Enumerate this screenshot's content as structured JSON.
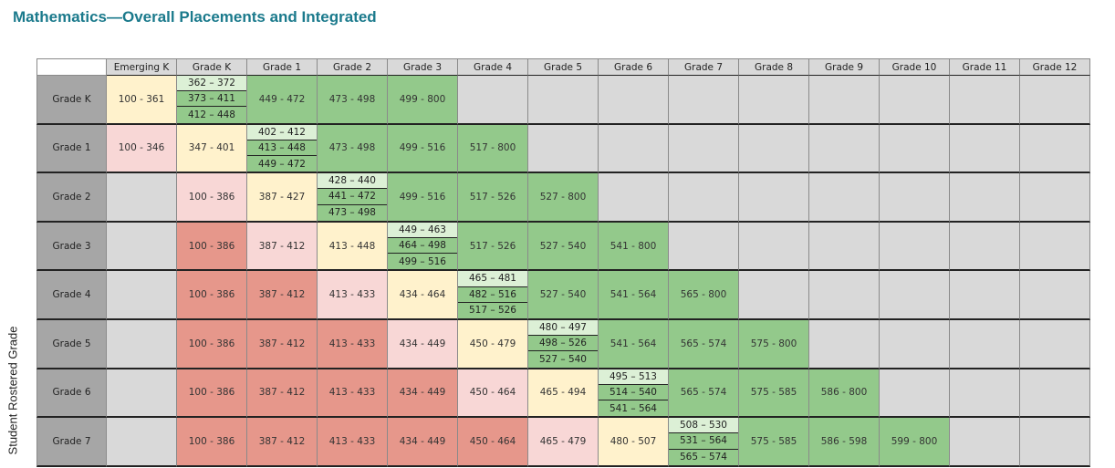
{
  "header": {
    "title": "Mathematics—Overall Placements and Integrated"
  },
  "side_label": "Student Rostered Grade",
  "tone_colors": {
    "gray": "#d9d9d9",
    "green": "#93c98b",
    "lightgreen": "#dcf0d6",
    "yellow": "#fff2cc",
    "pink": "#f8d7d6",
    "red": "#e6978b"
  },
  "table": {
    "columns": [
      "Emerging K",
      "Grade K",
      "Grade 1",
      "Grade 2",
      "Grade 3",
      "Grade 4",
      "Grade 5",
      "Grade 6",
      "Grade 7",
      "Grade 8",
      "Grade 9",
      "Grade 10",
      "Grade 11",
      "Grade 12"
    ],
    "rows": [
      {
        "label": "Grade K",
        "cells": [
          {
            "text": "100 - 361",
            "tone": "yellow"
          },
          {
            "parts": [
              "362 – 372",
              "373 – 411",
              "412 – 448"
            ]
          },
          {
            "text": "449 - 472",
            "tone": "green"
          },
          {
            "text": "473 - 498",
            "tone": "green"
          },
          {
            "text": "499 - 800",
            "tone": "green"
          },
          null,
          null,
          null,
          null,
          null,
          null,
          null,
          null,
          null
        ]
      },
      {
        "label": "Grade 1",
        "cells": [
          {
            "text": "100 - 346",
            "tone": "pink"
          },
          {
            "text": "347 - 401",
            "tone": "yellow"
          },
          {
            "parts": [
              "402 – 412",
              "413 – 448",
              "449 – 472"
            ]
          },
          {
            "text": "473 - 498",
            "tone": "green"
          },
          {
            "text": "499 - 516",
            "tone": "green"
          },
          {
            "text": "517 - 800",
            "tone": "green"
          },
          null,
          null,
          null,
          null,
          null,
          null,
          null,
          null
        ]
      },
      {
        "label": "Grade 2",
        "cells": [
          null,
          {
            "text": "100 - 386",
            "tone": "pink"
          },
          {
            "text": "387 - 427",
            "tone": "yellow"
          },
          {
            "parts": [
              "428 – 440",
              "441 – 472",
              "473 – 498"
            ]
          },
          {
            "text": "499 - 516",
            "tone": "green"
          },
          {
            "text": "517 - 526",
            "tone": "green"
          },
          {
            "text": "527 - 800",
            "tone": "green"
          },
          null,
          null,
          null,
          null,
          null,
          null,
          null
        ]
      },
      {
        "label": "Grade 3",
        "cells": [
          null,
          {
            "text": "100 - 386",
            "tone": "red"
          },
          {
            "text": "387 - 412",
            "tone": "pink"
          },
          {
            "text": "413 - 448",
            "tone": "yellow"
          },
          {
            "parts": [
              "449 – 463",
              "464 – 498",
              "499 – 516"
            ]
          },
          {
            "text": "517 - 526",
            "tone": "green"
          },
          {
            "text": "527 - 540",
            "tone": "green"
          },
          {
            "text": "541 - 800",
            "tone": "green"
          },
          null,
          null,
          null,
          null,
          null,
          null
        ]
      },
      {
        "label": "Grade 4",
        "cells": [
          null,
          {
            "text": "100 - 386",
            "tone": "red"
          },
          {
            "text": "387 - 412",
            "tone": "red"
          },
          {
            "text": "413 - 433",
            "tone": "pink"
          },
          {
            "text": "434 - 464",
            "tone": "yellow"
          },
          {
            "parts": [
              "465 – 481",
              "482 – 516",
              "517 – 526"
            ]
          },
          {
            "text": "527 - 540",
            "tone": "green"
          },
          {
            "text": "541 - 564",
            "tone": "green"
          },
          {
            "text": "565 - 800",
            "tone": "green"
          },
          null,
          null,
          null,
          null,
          null
        ]
      },
      {
        "label": "Grade 5",
        "cells": [
          null,
          {
            "text": "100 - 386",
            "tone": "red"
          },
          {
            "text": "387 - 412",
            "tone": "red"
          },
          {
            "text": "413 - 433",
            "tone": "red"
          },
          {
            "text": "434 - 449",
            "tone": "pink"
          },
          {
            "text": "450 - 479",
            "tone": "yellow"
          },
          {
            "parts": [
              "480 – 497",
              "498 – 526",
              "527 – 540"
            ]
          },
          {
            "text": "541 - 564",
            "tone": "green"
          },
          {
            "text": "565 - 574",
            "tone": "green"
          },
          {
            "text": "575 - 800",
            "tone": "green"
          },
          null,
          null,
          null,
          null
        ]
      },
      {
        "label": "Grade 6",
        "cells": [
          null,
          {
            "text": "100 - 386",
            "tone": "red"
          },
          {
            "text": "387 - 412",
            "tone": "red"
          },
          {
            "text": "413 - 433",
            "tone": "red"
          },
          {
            "text": "434 - 449",
            "tone": "red"
          },
          {
            "text": "450 - 464",
            "tone": "pink"
          },
          {
            "text": "465 - 494",
            "tone": "yellow"
          },
          {
            "parts": [
              "495 – 513",
              "514 – 540",
              "541 – 564"
            ]
          },
          {
            "text": "565 - 574",
            "tone": "green"
          },
          {
            "text": "575 - 585",
            "tone": "green"
          },
          {
            "text": "586 - 800",
            "tone": "green"
          },
          null,
          null,
          null
        ]
      },
      {
        "label": "Grade 7",
        "cells": [
          null,
          {
            "text": "100 - 386",
            "tone": "red"
          },
          {
            "text": "387 - 412",
            "tone": "red"
          },
          {
            "text": "413 - 433",
            "tone": "red"
          },
          {
            "text": "434 - 449",
            "tone": "red"
          },
          {
            "text": "450 - 464",
            "tone": "red"
          },
          {
            "text": "465 - 479",
            "tone": "pink"
          },
          {
            "text": "480 - 507",
            "tone": "yellow"
          },
          {
            "parts": [
              "508 – 530",
              "531 – 564",
              "565 – 574"
            ]
          },
          {
            "text": "575 - 585",
            "tone": "green"
          },
          {
            "text": "586 - 598",
            "tone": "green"
          },
          {
            "text": "599 - 800",
            "tone": "green"
          },
          null,
          null
        ]
      }
    ]
  }
}
